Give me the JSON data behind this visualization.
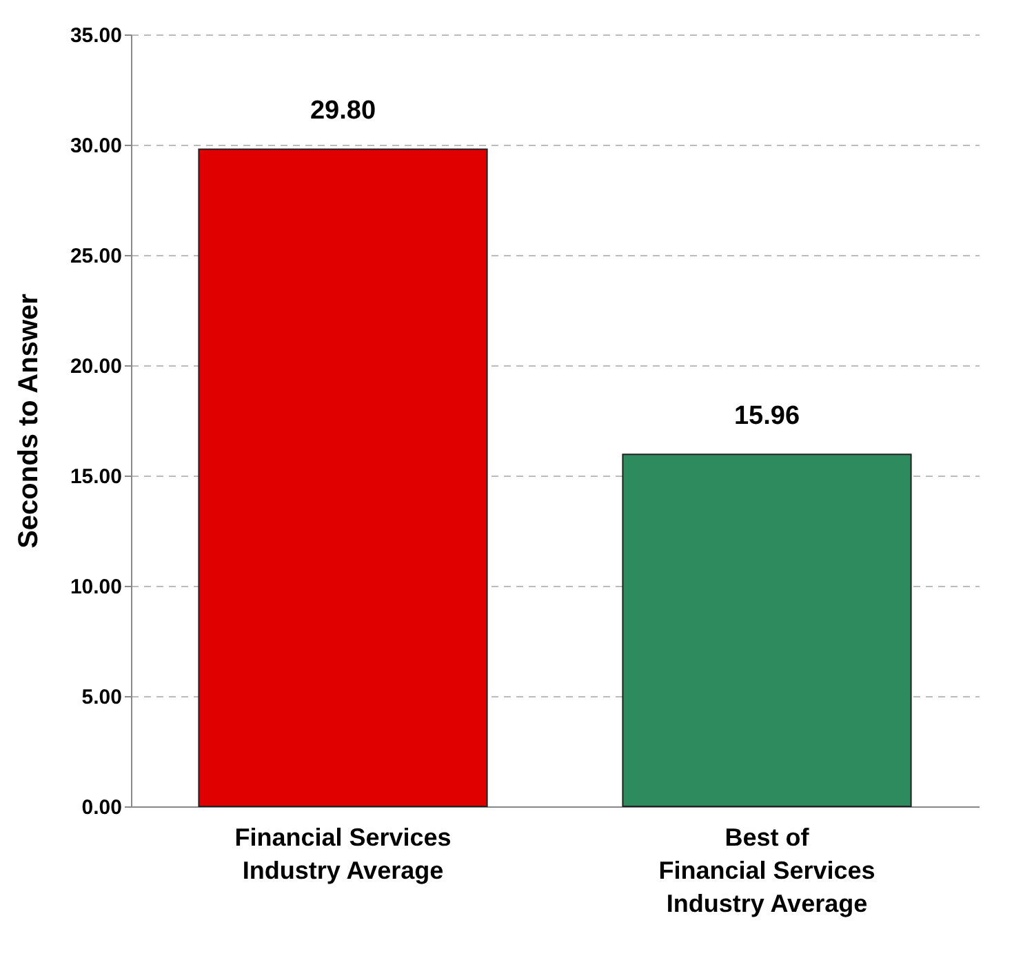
{
  "chart_data": {
    "type": "bar",
    "ylabel": "Seconds to Answer",
    "categories": [
      "Financial Services\nIndustry Average",
      "Best of\nFinancial Services\nIndustry Average"
    ],
    "values": [
      29.8,
      15.96
    ],
    "colors": [
      "#e00000",
      "#2e8b5e"
    ],
    "value_labels": [
      "29.80",
      "15.96"
    ],
    "ylim": [
      0,
      35
    ],
    "yticks": [
      {
        "value": 0,
        "label": "0.00"
      },
      {
        "value": 5,
        "label": "5.00"
      },
      {
        "value": 10,
        "label": "10.00"
      },
      {
        "value": 15,
        "label": "15.00"
      },
      {
        "value": 20,
        "label": "20.00"
      },
      {
        "value": 25,
        "label": "25.00"
      },
      {
        "value": 30,
        "label": "30.00"
      },
      {
        "value": 35,
        "label": "35.00"
      }
    ],
    "grid": "y"
  }
}
